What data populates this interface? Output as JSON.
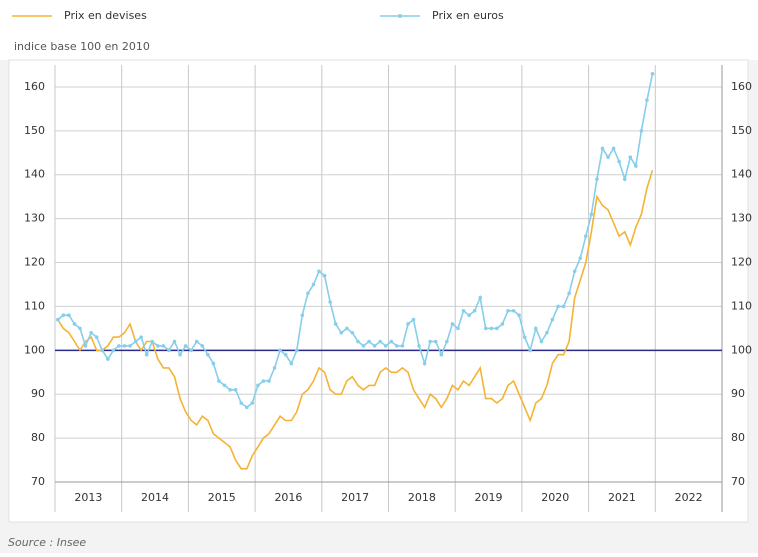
{
  "chart_data": {
    "type": "line",
    "legend": "top",
    "annotation": "indice base 100 en 2010",
    "source": "Source : Insee",
    "reference_line": {
      "value": 100,
      "color": "#2b2b8c"
    },
    "categories": [
      "2013",
      "2014",
      "2015",
      "2016",
      "2017",
      "2018",
      "2019",
      "2020",
      "2021",
      "2022"
    ],
    "xlim": [
      2013,
      2023
    ],
    "xticks": [
      2014,
      2015,
      2016,
      2017,
      2018,
      2019,
      2020,
      2021,
      2022
    ],
    "ylim": [
      70,
      165
    ],
    "yticks": [
      70,
      80,
      90,
      100,
      110,
      120,
      130,
      140,
      150,
      160
    ],
    "y2lim": [
      70,
      165
    ],
    "y2ticks": [
      70,
      80,
      90,
      100,
      110,
      120,
      130,
      140,
      150,
      160
    ],
    "grid": true,
    "x": [
      2013.042,
      2013.125,
      2013.208,
      2013.292,
      2013.375,
      2013.458,
      2013.542,
      2013.625,
      2013.708,
      2013.792,
      2013.875,
      2013.958,
      2014.042,
      2014.125,
      2014.208,
      2014.292,
      2014.375,
      2014.458,
      2014.542,
      2014.625,
      2014.708,
      2014.792,
      2014.875,
      2014.958,
      2015.042,
      2015.125,
      2015.208,
      2015.292,
      2015.375,
      2015.458,
      2015.542,
      2015.625,
      2015.708,
      2015.792,
      2015.875,
      2015.958,
      2016.042,
      2016.125,
      2016.208,
      2016.292,
      2016.375,
      2016.458,
      2016.542,
      2016.625,
      2016.708,
      2016.792,
      2016.875,
      2016.958,
      2017.042,
      2017.125,
      2017.208,
      2017.292,
      2017.375,
      2017.458,
      2017.542,
      2017.625,
      2017.708,
      2017.792,
      2017.875,
      2017.958,
      2018.042,
      2018.125,
      2018.208,
      2018.292,
      2018.375,
      2018.458,
      2018.542,
      2018.625,
      2018.708,
      2018.792,
      2018.875,
      2018.958,
      2019.042,
      2019.125,
      2019.208,
      2019.292,
      2019.375,
      2019.458,
      2019.542,
      2019.625,
      2019.708,
      2019.792,
      2019.875,
      2019.958,
      2020.042,
      2020.125,
      2020.208,
      2020.292,
      2020.375,
      2020.458,
      2020.542,
      2020.625,
      2020.708,
      2020.792,
      2020.875,
      2020.958,
      2021.042,
      2021.125,
      2021.208,
      2021.292,
      2021.375,
      2021.458,
      2021.542,
      2021.625,
      2021.708,
      2021.792,
      2021.875,
      2021.958
    ],
    "series": [
      {
        "name": "Prix en devises",
        "color": "#f5b335",
        "markers": false,
        "values": [
          107,
          105,
          104,
          102,
          100,
          102,
          103,
          100,
          100,
          101,
          103,
          103,
          104,
          106,
          102,
          100,
          102,
          102,
          98,
          96,
          96,
          94,
          89,
          86,
          84,
          83,
          85,
          84,
          81,
          80,
          79,
          78,
          75,
          73,
          73,
          76,
          78,
          80,
          81,
          83,
          85,
          84,
          84,
          86,
          90,
          91,
          93,
          96,
          95,
          91,
          90,
          90,
          93,
          94,
          92,
          91,
          92,
          92,
          95,
          96,
          95,
          95,
          96,
          95,
          91,
          89,
          87,
          90,
          89,
          87,
          89,
          92,
          91,
          93,
          92,
          94,
          96,
          89,
          89,
          88,
          89,
          92,
          93,
          90,
          87,
          84,
          88,
          89,
          92,
          97,
          99,
          99,
          102,
          112,
          116,
          120,
          127,
          135,
          133,
          132,
          129,
          126,
          127,
          124,
          128,
          131,
          137,
          141
        ]
      },
      {
        "name": "Prix en euros",
        "color": "#87ceeb",
        "markers": true,
        "values": [
          107,
          108,
          108,
          106,
          105,
          101,
          104,
          103,
          100,
          98,
          100,
          101,
          101,
          101,
          102,
          103,
          99,
          102,
          101,
          101,
          100,
          102,
          99,
          101,
          100,
          102,
          101,
          99,
          97,
          93,
          92,
          91,
          91,
          88,
          87,
          88,
          92,
          93,
          93,
          96,
          100,
          99,
          97,
          100,
          108,
          113,
          115,
          118,
          117,
          111,
          106,
          104,
          105,
          104,
          102,
          101,
          102,
          101,
          102,
          101,
          102,
          101,
          101,
          106,
          107,
          101,
          97,
          102,
          102,
          99,
          102,
          106,
          105,
          109,
          108,
          109,
          112,
          105,
          105,
          105,
          106,
          109,
          109,
          108,
          103,
          100,
          105,
          102,
          104,
          107,
          110,
          110,
          113,
          118,
          121,
          126,
          131,
          139,
          146,
          144,
          146,
          143,
          139,
          144,
          142,
          150,
          157,
          163
        ]
      }
    ]
  }
}
